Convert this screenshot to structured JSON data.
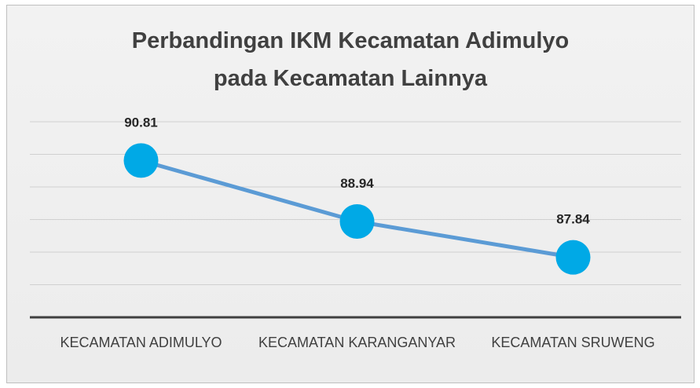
{
  "chart_data": {
    "type": "line",
    "title": "Perbandingan IKM Kecamatan Adimulyo pada Kecamatan Lainnya",
    "categories": [
      "KECAMATAN ADIMULYO",
      "KECAMATAN KARANGANYAR",
      "KECAMATAN SRUWENG"
    ],
    "series": [
      {
        "name": "IKM",
        "color": "#5b9bd5",
        "marker_color": "#00a9e6",
        "values": [
          90.81,
          88.94,
          87.84
        ]
      }
    ],
    "ylim": [
      86,
      92
    ],
    "yticks": [
      86,
      87,
      88,
      89,
      90,
      91,
      92
    ],
    "grid": true
  }
}
